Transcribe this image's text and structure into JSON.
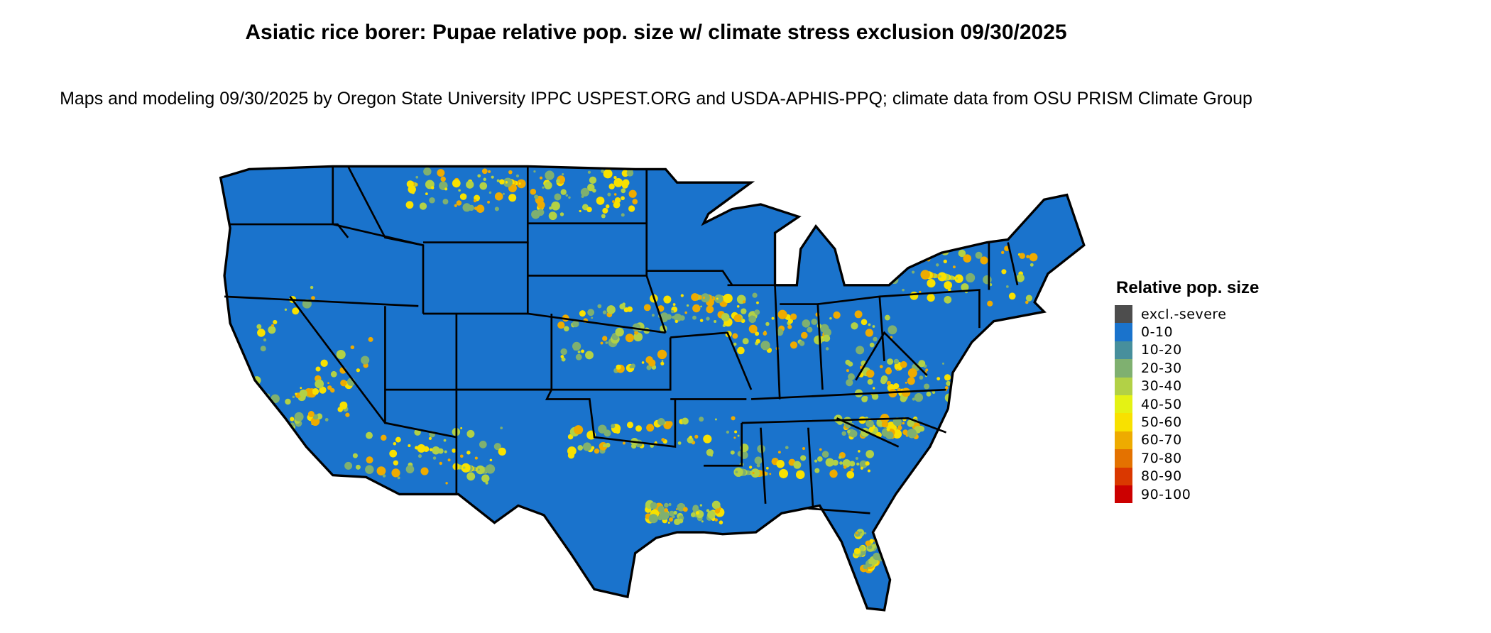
{
  "title": "Asiatic rice borer: Pupae relative pop. size w/ climate stress exclusion 09/30/2025",
  "subtitle": "Maps and modeling 09/30/2025 by Oregon State University IPPC USPEST.ORG and USDA-APHIS-PPQ; climate data from OSU PRISM Climate Group",
  "map": {
    "region": "Contiguous United States",
    "base_color": "#1a73cc",
    "highlight_colors": [
      "#f8e100",
      "#eeab00",
      "#7fb070",
      "#b2d146"
    ]
  },
  "legend": {
    "title": "Relative pop. size",
    "items": [
      {
        "label": "excl.-severe",
        "color": "#4d4d4d"
      },
      {
        "label": "0-10",
        "color": "#1a73cc"
      },
      {
        "label": "10-20",
        "color": "#478f9c"
      },
      {
        "label": "20-30",
        "color": "#7fb070"
      },
      {
        "label": "30-40",
        "color": "#b2d146"
      },
      {
        "label": "40-50",
        "color": "#e4f214"
      },
      {
        "label": "50-60",
        "color": "#f8e100"
      },
      {
        "label": "60-70",
        "color": "#eeab00"
      },
      {
        "label": "70-80",
        "color": "#e47200"
      },
      {
        "label": "80-90",
        "color": "#da3800"
      },
      {
        "label": "90-100",
        "color": "#cc0000"
      }
    ]
  }
}
